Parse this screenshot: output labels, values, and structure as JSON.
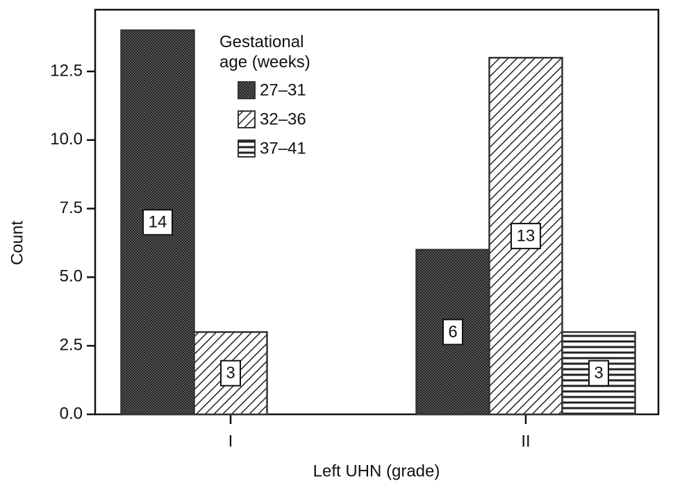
{
  "chart_data": {
    "type": "bar",
    "x_label": "Left UHN (grade)",
    "y_label": "Count",
    "categories": [
      "I",
      "II"
    ],
    "legend_title": "Gestational age (weeks)",
    "series": [
      {
        "name": "27–31",
        "color": "#333333",
        "pattern": "crosshatch",
        "values": [
          14,
          6
        ]
      },
      {
        "name": "32–36",
        "color": "#333333",
        "pattern": "diagonal",
        "values": [
          3,
          13
        ]
      },
      {
        "name": "37–41",
        "color": "#333333",
        "pattern": "horizontal",
        "values": [
          null,
          3
        ]
      }
    ],
    "ylim": [
      0,
      14.75
    ],
    "yticks": [
      {
        "value": 0,
        "label": "0.0"
      },
      {
        "value": 2.5,
        "label": "2.5"
      },
      {
        "value": 5,
        "label": "5.0"
      },
      {
        "value": 7.5,
        "label": "7.5"
      },
      {
        "value": 10,
        "label": "10.0"
      },
      {
        "value": 12.5,
        "label": "12.5"
      }
    ],
    "grid": false
  }
}
